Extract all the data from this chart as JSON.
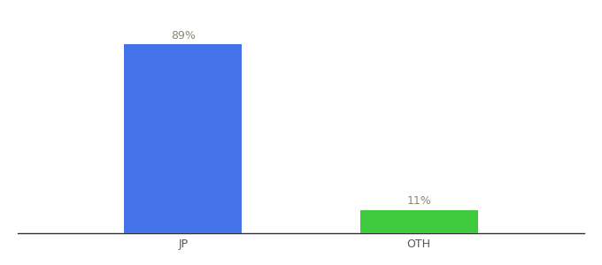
{
  "categories": [
    "JP",
    "OTH"
  ],
  "values": [
    89,
    11
  ],
  "bar_colors": [
    "#4472e8",
    "#3dca3d"
  ],
  "label_texts": [
    "89%",
    "11%"
  ],
  "ylim": [
    0,
    100
  ],
  "background_color": "#ffffff",
  "bar_width": 0.5,
  "label_fontsize": 9,
  "tick_fontsize": 9,
  "label_color": "#888877",
  "tick_color": "#555555"
}
